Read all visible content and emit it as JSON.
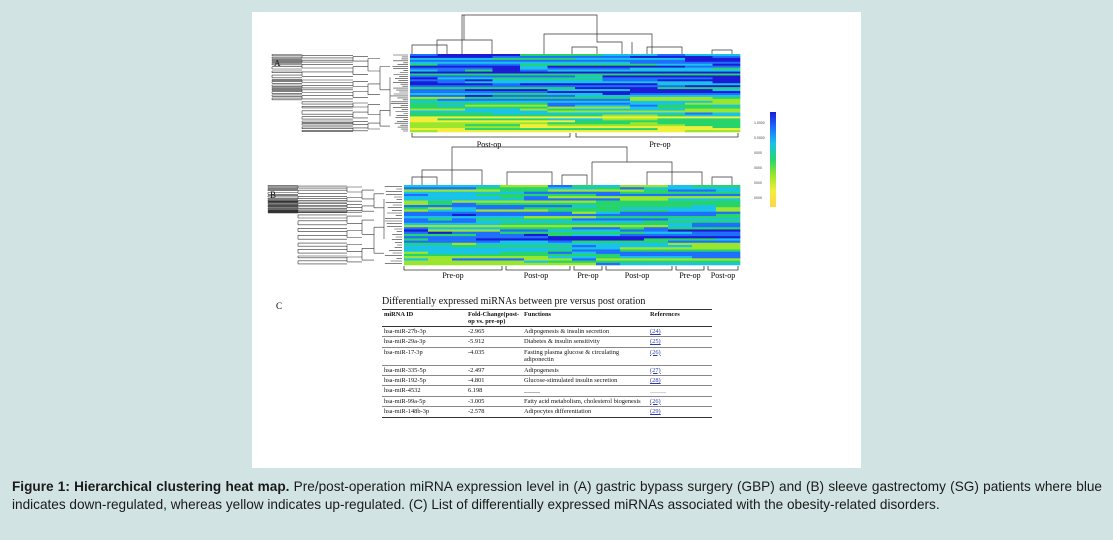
{
  "panels": {
    "a": {
      "label": "A",
      "group_labels": [
        "Post-op",
        "Pre-op"
      ]
    },
    "b": {
      "label": "B",
      "group_labels": [
        "Pre-op",
        "Post-op",
        "Pre-op",
        "Post-op",
        "Pre-op",
        "Post-op"
      ]
    },
    "c": {
      "label": "C"
    }
  },
  "color_scale": {
    "ticks": [
      "1.0000",
      "0.0000",
      "0000",
      "0000",
      "0000",
      "0000"
    ],
    "colors": [
      "#1b1bd6",
      "#1f6fff",
      "#19c3e8",
      "#27d46b",
      "#9be62c",
      "#f2ee3a",
      "#ffd54a"
    ]
  },
  "table": {
    "title": "Differentially expressed miRNAs between pre versus post oration",
    "headers": [
      "miRNA ID",
      "Fold-Change(post-op vs. pre-op)",
      "Functions",
      "References"
    ],
    "rows": [
      {
        "id": "hsa-miR-27b-3p",
        "fold": "-2.965",
        "function": "Adipogenesis & insulin secretion",
        "ref": "(24)"
      },
      {
        "id": "hsa-miR-29a-3p",
        "fold": "-5.912",
        "function": "Diabetes & insulin sensitivity",
        "ref": "(25)"
      },
      {
        "id": "hsa-miR-17-3p",
        "fold": "-4.035",
        "function": "Fasting plasma glucose & circulating adiponectin",
        "ref": "(26)"
      },
      {
        "id": "hsa-miR-335-5p",
        "fold": "-2.497",
        "function": "Adipogenesis",
        "ref": "(27)"
      },
      {
        "id": "hsa-miR-192-5p",
        "fold": "-4.801",
        "function": "Glucose-stimulated insulin secretion",
        "ref": "(28)"
      },
      {
        "id": "hsa-miR-4532",
        "fold": "6.198",
        "function": "_____",
        "ref": "_____"
      },
      {
        "id": "hsa-miR-99a-5p",
        "fold": "-3.005",
        "function": "Fatty acid metabolism, cholesterol biogenesis",
        "ref": "(26)"
      },
      {
        "id": "hsa-miR-148b-3p",
        "fold": "-2.578",
        "function": "Adipocytes differentiation",
        "ref": "(29)"
      }
    ]
  },
  "caption": {
    "bold": "Figure 1: Hierarchical clustering heat map.",
    "text": " Pre/post-operation miRNA expression level in (A) gastric bypass surgery (GBP) and (B) sleeve gastrectomy (SG) patients where blue indicates down-regulated, whereas yellow indicates up-regulated. (C) List of differentially expressed miRNAs associated with the obesity-related disorders."
  }
}
